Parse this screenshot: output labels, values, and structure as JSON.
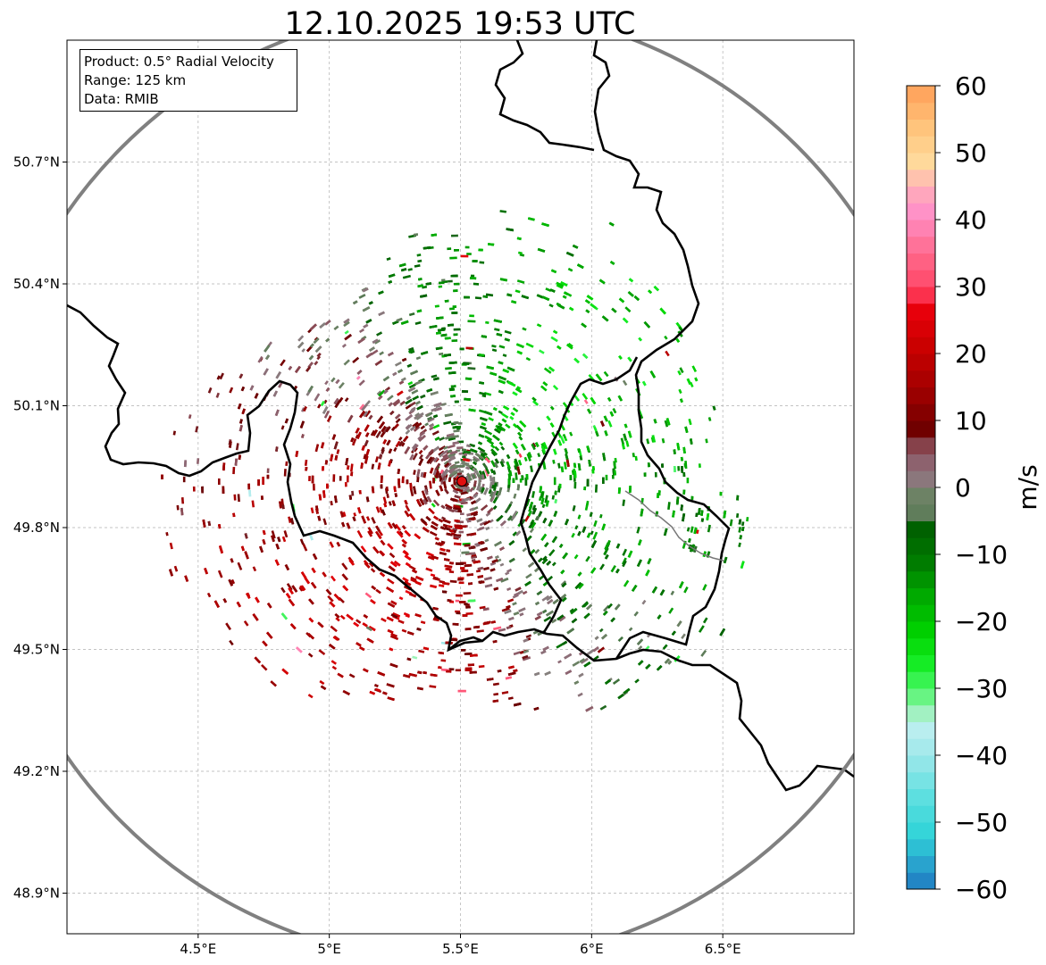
{
  "chart_data": {
    "type": "heatmap",
    "title": "12.10.2025 19:53 UTC",
    "info": {
      "product": "Product: 0.5° Radial Velocity",
      "range": "Range: 125 km",
      "data": "Data: RMIB"
    },
    "x_axis": {
      "label": "",
      "range": [
        4.0,
        7.0
      ],
      "ticks": [
        4.5,
        5.0,
        5.5,
        6.0,
        6.5
      ],
      "tick_labels": [
        "4.5°E",
        "5°E",
        "5.5°E",
        "6°E",
        "6.5°E"
      ]
    },
    "y_axis": {
      "label": "",
      "range": [
        48.8,
        51.0
      ],
      "ticks": [
        48.9,
        49.2,
        49.5,
        49.8,
        50.1,
        50.4,
        50.7
      ],
      "tick_labels": [
        "48.9°N",
        "49.2°N",
        "49.5°N",
        "49.8°N",
        "50.1°N",
        "50.4°N",
        "50.7°N"
      ]
    },
    "grid": true,
    "radar_site": {
      "lon": 5.505,
      "lat": 49.914
    },
    "range_km": 125,
    "colorbar": {
      "label": "m/s",
      "range": [
        -60,
        60
      ],
      "ticks": [
        -60,
        -50,
        -40,
        -30,
        -20,
        -10,
        0,
        10,
        20,
        30,
        40,
        50,
        60
      ],
      "tick_labels": [
        "−60",
        "−50",
        "−40",
        "−30",
        "−20",
        "−10",
        "0",
        "10",
        "20",
        "30",
        "40",
        "50",
        "60"
      ],
      "stops": [
        {
          "v": -60,
          "c": "#1f78c1"
        },
        {
          "v": -56,
          "c": "#2aa6cf"
        },
        {
          "v": -52,
          "c": "#2fd3d8"
        },
        {
          "v": -46,
          "c": "#5fe0e0"
        },
        {
          "v": -40,
          "c": "#9ee8ea"
        },
        {
          "v": -35,
          "c": "#c2f0f0"
        },
        {
          "v": -33,
          "c": "#8ff2a6"
        },
        {
          "v": -30,
          "c": "#4cf56a"
        },
        {
          "v": -27,
          "c": "#19f02b"
        },
        {
          "v": -22,
          "c": "#00d400"
        },
        {
          "v": -16,
          "c": "#00a800"
        },
        {
          "v": -11,
          "c": "#007a00"
        },
        {
          "v": -6,
          "c": "#006000"
        },
        {
          "v": -5,
          "c": "#5a7a56"
        },
        {
          "v": -1,
          "c": "#6e8266"
        },
        {
          "v": 0,
          "c": "#888080"
        },
        {
          "v": 3,
          "c": "#8e6a76"
        },
        {
          "v": 6,
          "c": "#8a4a54"
        },
        {
          "v": 8,
          "c": "#6a0000"
        },
        {
          "v": 14,
          "c": "#9c0000"
        },
        {
          "v": 22,
          "c": "#d00000"
        },
        {
          "v": 28,
          "c": "#f00010"
        },
        {
          "v": 29,
          "c": "#ff4060"
        },
        {
          "v": 35,
          "c": "#ff6a8c"
        },
        {
          "v": 41,
          "c": "#ff90c8"
        },
        {
          "v": 45,
          "c": "#ffb0b8"
        },
        {
          "v": 48,
          "c": "#ffdca0"
        },
        {
          "v": 53,
          "c": "#ffc880"
        },
        {
          "v": 60,
          "c": "#ff9e58"
        }
      ]
    },
    "velocity_field": {
      "description_sectors": [
        {
          "name": "north",
          "lon": 5.45,
          "lat": 50.3,
          "velocity": -12
        },
        {
          "name": "northeast",
          "lon": 5.9,
          "lat": 50.15,
          "velocity": -22
        },
        {
          "name": "east",
          "lon": 6.1,
          "lat": 49.75,
          "velocity": -13
        },
        {
          "name": "southeast",
          "lon": 6.0,
          "lat": 49.45,
          "velocity": -3
        },
        {
          "name": "south",
          "lon": 5.55,
          "lat": 49.4,
          "velocity": 14
        },
        {
          "name": "southwest",
          "lon": 5.2,
          "lat": 49.65,
          "velocity": 20
        },
        {
          "name": "west",
          "lon": 5.05,
          "lat": 49.95,
          "velocity": 14
        },
        {
          "name": "northwest",
          "lon": 5.1,
          "lat": 50.2,
          "velocity": 2
        }
      ]
    }
  }
}
